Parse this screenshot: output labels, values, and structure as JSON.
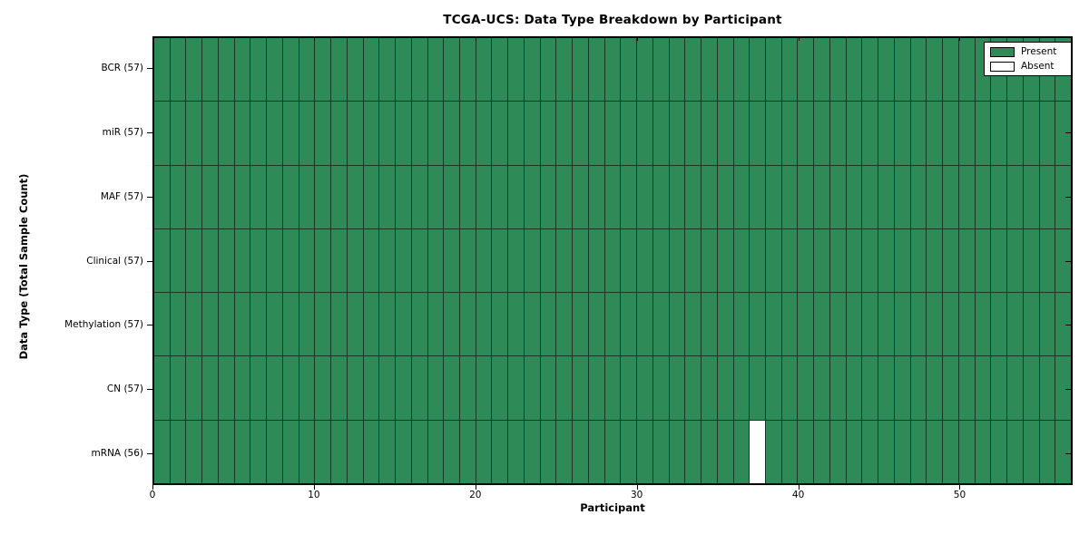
{
  "chart_data": {
    "type": "heatmap",
    "title": "TCGA-UCS: Data Type Breakdown by Participant",
    "xlabel": "Participant",
    "ylabel": "Data Type (Total Sample Count)",
    "n_participants": 57,
    "x_range": [
      0,
      57
    ],
    "x_ticks": [
      0,
      10,
      20,
      30,
      40,
      50
    ],
    "rows": [
      {
        "label": "BCR (57)",
        "data_type": "BCR",
        "present_count": 57,
        "absent_participants": []
      },
      {
        "label": "miR (57)",
        "data_type": "miR",
        "present_count": 57,
        "absent_participants": []
      },
      {
        "label": "MAF (57)",
        "data_type": "MAF",
        "present_count": 57,
        "absent_participants": []
      },
      {
        "label": "Clinical (57)",
        "data_type": "Clinical",
        "present_count": 57,
        "absent_participants": []
      },
      {
        "label": "Methylation (57)",
        "data_type": "Methylation",
        "present_count": 57,
        "absent_participants": []
      },
      {
        "label": "CN (57)",
        "data_type": "CN",
        "present_count": 57,
        "absent_participants": []
      },
      {
        "label": "mRNA (56)",
        "data_type": "mRNA",
        "present_count": 56,
        "absent_participants": [
          37
        ]
      }
    ],
    "legend": {
      "position": "top-right",
      "entries": [
        {
          "label": "Present",
          "color": "#2e8b57"
        },
        {
          "label": "Absent",
          "color": "#ffffff"
        }
      ]
    },
    "colors": {
      "present": "#2e8b57",
      "absent": "#ffffff",
      "grid_line": "#16382a",
      "frame": "#000000"
    },
    "grid": true
  }
}
